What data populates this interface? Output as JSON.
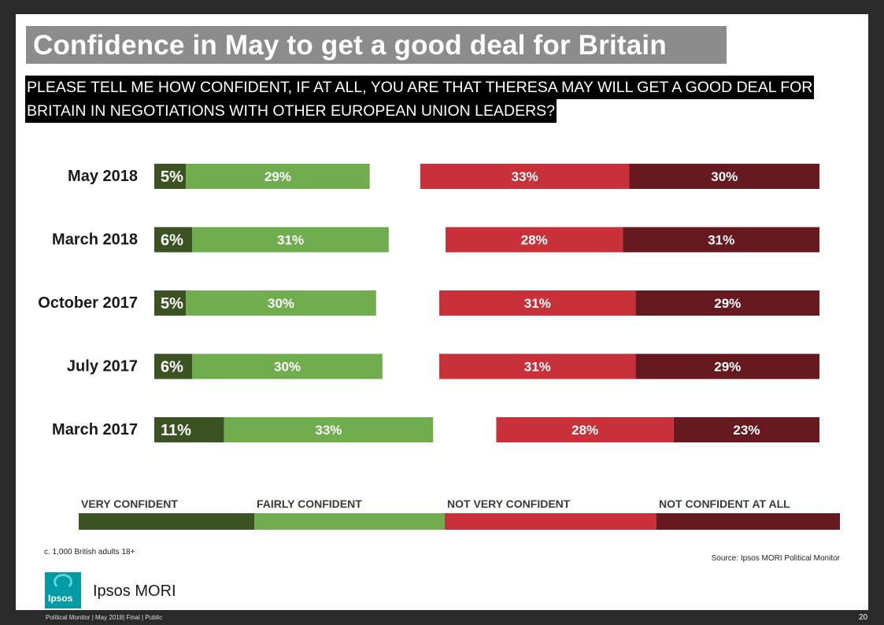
{
  "title": "Confidence in May to get a good deal for Britain",
  "question": {
    "line1": "PLEASE TELL ME HOW CONFIDENT, IF AT ALL, YOU ARE THAT THERESA MAY WILL GET A GOOD DEAL FOR",
    "line2": "BRITAIN IN NEGOTIATIONS WITH OTHER EUROPEAN UNION LEADERS?"
  },
  "chart_data": {
    "type": "bar",
    "orientation": "horizontal",
    "stacked": "diverging",
    "categories": [
      "May 2018",
      "March 2018",
      "October 2017",
      "July 2017",
      "March 2017"
    ],
    "series": [
      {
        "name": "VERY CONFIDENT",
        "color": "#3b5323",
        "values": [
          5,
          6,
          5,
          6,
          11
        ]
      },
      {
        "name": "FAIRLY CONFIDENT",
        "color": "#70ad4f",
        "values": [
          29,
          31,
          30,
          30,
          33
        ]
      },
      {
        "name": "NOT VERY CONFIDENT",
        "color": "#c8313a",
        "values": [
          33,
          28,
          31,
          31,
          28
        ]
      },
      {
        "name": "NOT CONFIDENT AT ALL",
        "color": "#661a20",
        "values": [
          30,
          31,
          29,
          29,
          23
        ]
      }
    ],
    "unit": "%",
    "legend_position": "bottom"
  },
  "footnote": "c. 1,000 British adults 18+",
  "source": "Source: Ipsos MORI Political Monitor",
  "brand": {
    "logo_text": "Ipsos",
    "name": "Ipsos MORI"
  },
  "footer": {
    "left": "Political Monitor | May 2018| Final | Public",
    "page": "20"
  }
}
